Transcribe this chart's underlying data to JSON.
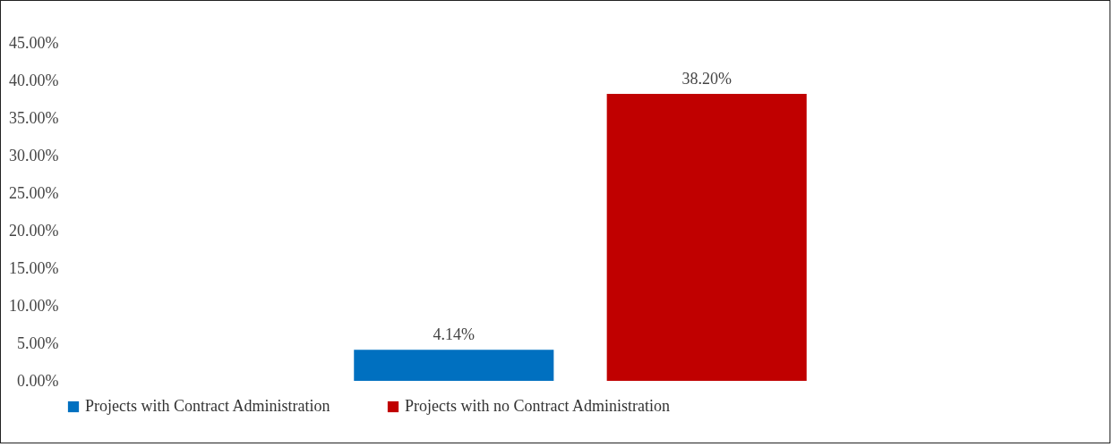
{
  "chart_data": {
    "type": "bar",
    "categories": [
      null
    ],
    "series": [
      {
        "name": "Projects with Contract Administration",
        "color": "#0070c0",
        "values": [
          4.14
        ],
        "value_labels": [
          "4.14%"
        ]
      },
      {
        "name": "Projects with no Contract Administration",
        "color": "#c00000",
        "values": [
          38.2
        ],
        "value_labels": [
          "38.20%"
        ]
      }
    ],
    "ylim": [
      0,
      45
    ],
    "yticks": [
      {
        "value": 0,
        "label": "0.00%"
      },
      {
        "value": 5,
        "label": "5.00%"
      },
      {
        "value": 10,
        "label": "10.00%"
      },
      {
        "value": 15,
        "label": "15.00%"
      },
      {
        "value": 20,
        "label": "20.00%"
      },
      {
        "value": 25,
        "label": "25.00%"
      },
      {
        "value": 30,
        "label": "30.00%"
      },
      {
        "value": 35,
        "label": "35.00%"
      },
      {
        "value": 40,
        "label": "40.00%"
      },
      {
        "value": 45,
        "label": "45.00%"
      }
    ],
    "grid": false,
    "legend": "bottom"
  }
}
